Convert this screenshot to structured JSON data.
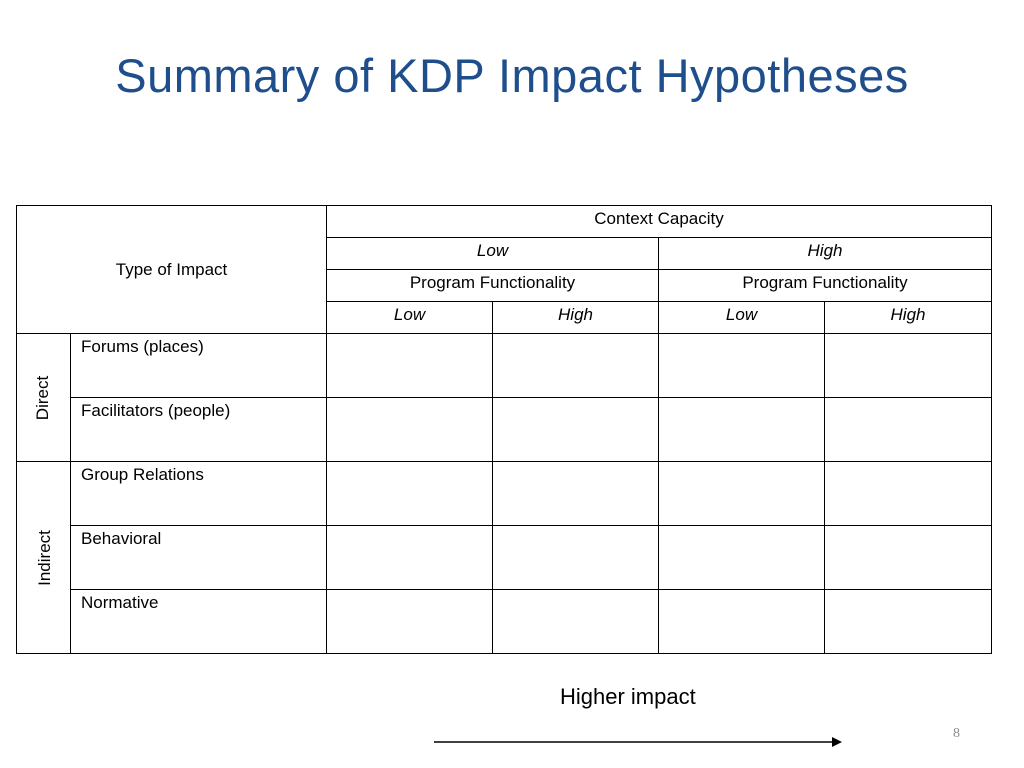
{
  "slide": {
    "title": "Summary of KDP Impact Hypotheses",
    "higher_impact": "Higher impact",
    "page_number": "8"
  },
  "table": {
    "type_of_impact": "Type of Impact",
    "context_capacity": "Context Capacity",
    "capacity_levels": [
      "Low",
      "High"
    ],
    "program_functionality": [
      "Program Functionality",
      "Program Functionality"
    ],
    "functionality_levels": [
      "Low",
      "High",
      "Low",
      "High"
    ],
    "groups": [
      {
        "name": "Direct",
        "rows": [
          "Forums (places)",
          "Facilitators (people)"
        ]
      },
      {
        "name": "Indirect",
        "rows": [
          "Group Relations",
          "Behavioral",
          "Normative"
        ]
      }
    ]
  }
}
